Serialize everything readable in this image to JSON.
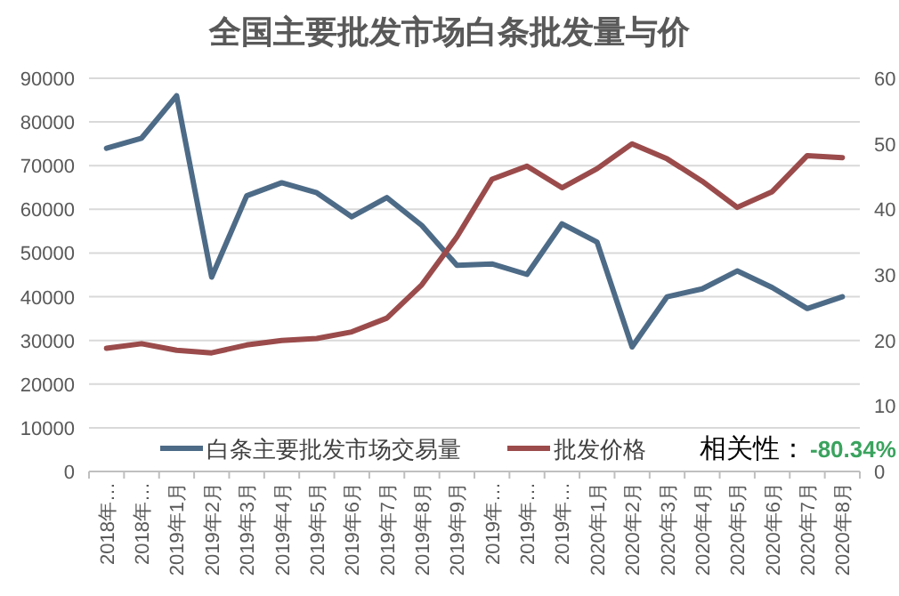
{
  "chart_data": {
    "type": "line",
    "title": "全国主要批发市场白条批发量与价",
    "categories": [
      "2018年…",
      "2018年…",
      "2019年1月",
      "2019年2月",
      "2019年3月",
      "2019年4月",
      "2019年5月",
      "2019年6月",
      "2019年7月",
      "2019年8月",
      "2019年9月",
      "2019年…",
      "2019年…",
      "2019年…",
      "2020年1月",
      "2020年2月",
      "2020年3月",
      "2020年4月",
      "2020年5月",
      "2020年6月",
      "2020年7月",
      "2020年8月"
    ],
    "series": [
      {
        "name": "白条主要批发市场交易量",
        "color": "#4d6b87",
        "values": [
          74000,
          76300,
          86000,
          44500,
          63100,
          66100,
          63800,
          58300,
          62700,
          56300,
          47200,
          47500,
          45100,
          56700,
          52500,
          28500,
          40000,
          41800,
          45900,
          42100,
          37300,
          40000
        ]
      },
      {
        "name": "批发价格",
        "color": "#9b4b4b",
        "axis": "y2",
        "values": [
          18.8,
          19.5,
          18.5,
          18.1,
          19.3,
          20.0,
          20.3,
          21.3,
          23.4,
          28.5,
          35.8,
          44.6,
          46.6,
          43.3,
          46.2,
          50.0,
          47.7,
          44.3,
          40.3,
          42.7,
          48.2,
          47.9
        ]
      }
    ],
    "ylim": [
      0,
      90000
    ],
    "yticks": [
      0,
      10000,
      20000,
      30000,
      40000,
      50000,
      60000,
      70000,
      80000,
      90000
    ],
    "y2lim": [
      0,
      60
    ],
    "y2ticks": [
      0,
      10,
      20,
      30,
      40,
      50,
      60
    ],
    "grid": "y",
    "legend": "bottom",
    "marker": "none",
    "line_style": "solid",
    "annotations": [
      "相关性：",
      "-80.34%"
    ]
  }
}
